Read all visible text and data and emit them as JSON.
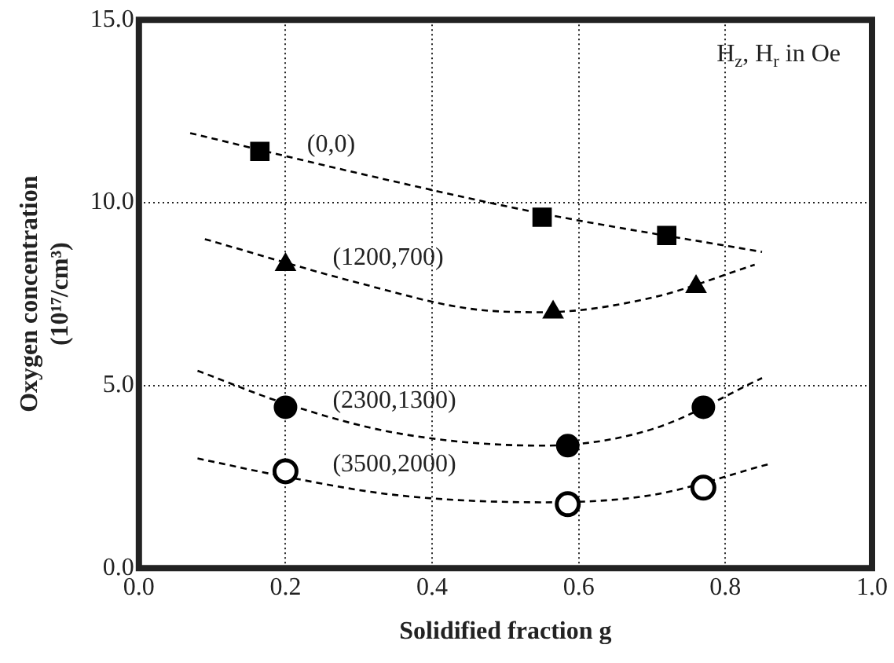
{
  "chart_data": {
    "type": "scatter",
    "xlabel": "Solidified fraction g",
    "ylabel": "Oxygen concentration\n(10¹⁷/cm³)",
    "xlim": [
      0,
      1
    ],
    "xticks": [
      {
        "value": 0,
        "label": "0.0"
      },
      {
        "value": 0.2,
        "label": "0.2"
      },
      {
        "value": 0.4,
        "label": "0.4"
      },
      {
        "value": 0.6,
        "label": "0.6"
      },
      {
        "value": 0.8,
        "label": "0.8"
      },
      {
        "value": 1,
        "label": "1.0"
      }
    ],
    "ylim": [
      0,
      15
    ],
    "yticks": [
      {
        "value": 0,
        "label": "0.0"
      },
      {
        "value": 5,
        "label": "5.0"
      },
      {
        "value": 10,
        "label": "10.0"
      },
      {
        "value": 15,
        "label": "15.0"
      }
    ],
    "grid": true,
    "legend": false,
    "annotations": [
      "H$_{z}$, H$_{r}$ in Oe"
    ],
    "series": [
      {
        "name": "(0,0)",
        "marker": "square",
        "color": "#000000",
        "x": [
          0.165,
          0.55,
          0.72
        ],
        "values": [
          11.4,
          9.6,
          9.1
        ]
      },
      {
        "name": "(1200,700)",
        "marker": "triangle",
        "color": "#000000",
        "x": [
          0.2,
          0.565,
          0.76
        ],
        "values": [
          8.3,
          7.0,
          7.7
        ]
      },
      {
        "name": "(2300,1300)",
        "marker": "circle",
        "color": "#000000",
        "x": [
          0.2,
          0.585,
          0.77
        ],
        "values": [
          4.4,
          3.35,
          4.4
        ]
      },
      {
        "name": "(3500,2000)",
        "marker": "circle",
        "color": "#000000",
        "x": [
          0.2,
          0.585,
          0.77
        ],
        "values": [
          2.65,
          1.75,
          2.2
        ]
      },
      {
        "type": "line",
        "line_style": "dashed",
        "marker": "none",
        "color": "#000000",
        "x": [
          0.07,
          0.3,
          0.55,
          0.85
        ],
        "values": [
          11.9,
          10.8,
          9.7,
          8.65
        ]
      },
      {
        "type": "line",
        "line_style": "dashed",
        "marker": "none",
        "color": "#000000",
        "x": [
          0.09,
          0.3,
          0.45,
          0.55,
          0.7,
          0.84
        ],
        "values": [
          9.0,
          7.8,
          7.1,
          7.0,
          7.4,
          8.3
        ]
      },
      {
        "type": "line",
        "line_style": "dashed",
        "marker": "none",
        "color": "#000000",
        "x": [
          0.08,
          0.2,
          0.35,
          0.55,
          0.7,
          0.85
        ],
        "values": [
          5.4,
          4.5,
          3.7,
          3.35,
          3.8,
          5.2
        ]
      },
      {
        "type": "line",
        "line_style": "dashed",
        "marker": "none",
        "color": "#000000",
        "x": [
          0.08,
          0.2,
          0.35,
          0.55,
          0.7,
          0.86
        ],
        "values": [
          3.0,
          2.5,
          2.0,
          1.8,
          2.0,
          2.85
        ]
      }
    ]
  }
}
